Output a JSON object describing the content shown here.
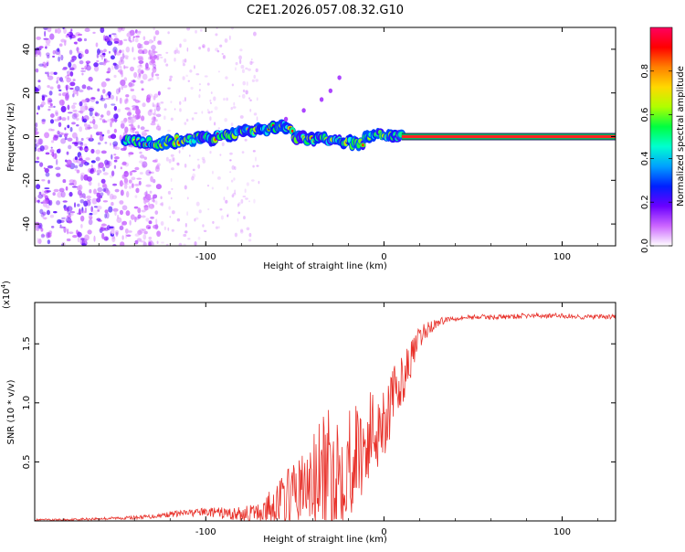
{
  "page": {
    "title": "C2E1.2026.057.08.32.G10"
  },
  "colors": {
    "snr_line": "#e8312a",
    "track_core": "#ff2020",
    "track_edge": "#00c060"
  },
  "chart_data": [
    {
      "type": "heatmap",
      "title": "C2E1.2026.057.08.32.G10",
      "xlabel": "Height of straight line (km)",
      "ylabel": "Frequency (Hz)",
      "xlim": [
        -196,
        130
      ],
      "ylim": [
        -50,
        50
      ],
      "x_ticks": [
        {
          "v": -100,
          "label": "-100"
        },
        {
          "v": 0,
          "label": "0"
        },
        {
          "v": 100,
          "label": "100"
        }
      ],
      "y_ticks": [
        {
          "v": 40,
          "label": "40"
        },
        {
          "v": 20,
          "label": "20"
        },
        {
          "v": 0,
          "label": "0"
        },
        {
          "v": -20,
          "label": "-20"
        },
        {
          "v": -40,
          "label": "-40"
        }
      ],
      "ridge": [
        {
          "x": -145,
          "y": -2
        },
        {
          "x": -130,
          "y": -3
        },
        {
          "x": -120,
          "y": -2
        },
        {
          "x": -110,
          "y": -1
        },
        {
          "x": -100,
          "y": -1
        },
        {
          "x": -90,
          "y": 1
        },
        {
          "x": -80,
          "y": 2
        },
        {
          "x": -70,
          "y": 3
        },
        {
          "x": -60,
          "y": 4
        },
        {
          "x": -55,
          "y": 5
        },
        {
          "x": -50,
          "y": 0
        },
        {
          "x": -40,
          "y": -1
        },
        {
          "x": -30,
          "y": -2
        },
        {
          "x": -20,
          "y": -3
        },
        {
          "x": -12,
          "y": -3
        },
        {
          "x": -8,
          "y": 1
        },
        {
          "x": 0,
          "y": 1
        },
        {
          "x": 10,
          "y": 0
        }
      ],
      "steady_tone": {
        "x_from": 10,
        "x_to": 130,
        "freq_hz": 0
      },
      "branch": [
        {
          "x": -55,
          "y": 8
        },
        {
          "x": -45,
          "y": 12
        },
        {
          "x": -35,
          "y": 17
        },
        {
          "x": -30,
          "y": 21
        },
        {
          "x": -25,
          "y": 27
        }
      ],
      "colorbar": {
        "label": "Normalized spectral amplitude",
        "range": [
          0,
          1
        ],
        "ticks": [
          {
            "v": 0.0,
            "label": "0.0"
          },
          {
            "v": 0.2,
            "label": "0.2"
          },
          {
            "v": 0.4,
            "label": "0.4"
          },
          {
            "v": 0.6,
            "label": "0.6"
          },
          {
            "v": 0.8,
            "label": "0.8"
          }
        ],
        "colors": [
          "#ffffff",
          "#cc66ff",
          "#6a00ff",
          "#0020ff",
          "#00a0ff",
          "#00ffd0",
          "#00ff40",
          "#b0ff00",
          "#ffd800",
          "#ff8000",
          "#ff0000",
          "#ff0060"
        ]
      }
    },
    {
      "type": "line",
      "xlabel": "Height of straight line (km)",
      "ylabel": "SNR (10 * v/v)",
      "y_scale_label": "(x10",
      "y_scale_exp": "4",
      "xlim": [
        -196,
        130
      ],
      "ylim": [
        0,
        1.85
      ],
      "x_ticks": [
        {
          "v": -100,
          "label": "-100"
        },
        {
          "v": 0,
          "label": "0"
        },
        {
          "v": 100,
          "label": "100"
        }
      ],
      "y_ticks": [
        {
          "v": 0.5,
          "label": "0.5"
        },
        {
          "v": 1.0,
          "label": "1.0"
        },
        {
          "v": 1.5,
          "label": "1.5"
        }
      ],
      "series": [
        {
          "name": "SNR",
          "x": [
            -196,
            -180,
            -160,
            -140,
            -130,
            -120,
            -110,
            -100,
            -90,
            -80,
            -70,
            -65,
            -60,
            -55,
            -50,
            -45,
            -40,
            -35,
            -30,
            -25,
            -20,
            -15,
            -10,
            -5,
            0,
            5,
            10,
            15,
            20,
            25,
            30,
            35,
            40,
            50,
            60,
            70,
            80,
            90,
            100,
            110,
            120,
            130
          ],
          "y": [
            0.01,
            0.01,
            0.02,
            0.03,
            0.04,
            0.06,
            0.07,
            0.08,
            0.07,
            0.06,
            0.08,
            0.12,
            0.18,
            0.22,
            0.26,
            0.3,
            0.36,
            0.42,
            0.46,
            0.5,
            0.56,
            0.62,
            0.7,
            0.82,
            0.9,
            1.05,
            1.2,
            1.38,
            1.55,
            1.64,
            1.68,
            1.71,
            1.72,
            1.73,
            1.73,
            1.73,
            1.74,
            1.74,
            1.74,
            1.73,
            1.73,
            1.73
          ]
        }
      ],
      "noise_amplitude": [
        {
          "x": -196,
          "a": 0.01
        },
        {
          "x": -140,
          "a": 0.02
        },
        {
          "x": -100,
          "a": 0.05
        },
        {
          "x": -70,
          "a": 0.12
        },
        {
          "x": -50,
          "a": 0.4
        },
        {
          "x": -30,
          "a": 0.8
        },
        {
          "x": -20,
          "a": 0.7
        },
        {
          "x": -10,
          "a": 0.6
        },
        {
          "x": 0,
          "a": 0.5
        },
        {
          "x": 10,
          "a": 0.3
        },
        {
          "x": 20,
          "a": 0.15
        },
        {
          "x": 30,
          "a": 0.05
        },
        {
          "x": 40,
          "a": 0.03
        },
        {
          "x": 130,
          "a": 0.03
        }
      ]
    }
  ]
}
